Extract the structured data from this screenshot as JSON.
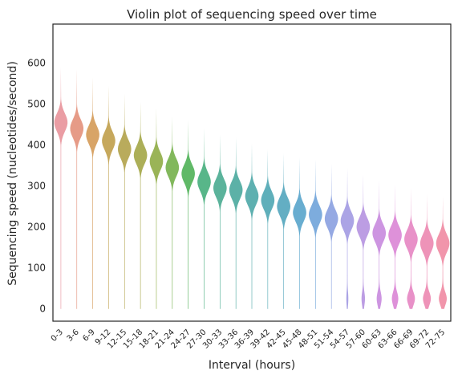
{
  "chart_data": {
    "type": "violin",
    "title": "Violin plot of sequencing speed over time",
    "xlabel": "Interval (hours)",
    "ylabel": "Sequencing speed (nucleotides/second)",
    "ylim": [
      -30,
      695
    ],
    "yticks": [
      0,
      100,
      200,
      300,
      400,
      500,
      600
    ],
    "grid": false,
    "categories": [
      "0-3",
      "3-6",
      "6-9",
      "9-12",
      "12-15",
      "15-18",
      "18-21",
      "21-24",
      "24-27",
      "27-30",
      "30-33",
      "33-36",
      "36-39",
      "39-42",
      "42-45",
      "45-48",
      "48-51",
      "51-54",
      "54-57",
      "57-60",
      "60-63",
      "63-66",
      "66-69",
      "69-72",
      "72-75"
    ],
    "medians": [
      455,
      440,
      425,
      410,
      390,
      375,
      360,
      345,
      330,
      310,
      295,
      290,
      275,
      265,
      250,
      235,
      230,
      220,
      215,
      200,
      185,
      180,
      170,
      160,
      160
    ],
    "max": [
      590,
      585,
      565,
      545,
      525,
      505,
      490,
      470,
      460,
      440,
      425,
      420,
      405,
      390,
      380,
      370,
      365,
      355,
      345,
      330,
      315,
      305,
      295,
      280,
      275
    ],
    "min": [
      0,
      0,
      0,
      0,
      0,
      0,
      0,
      0,
      0,
      0,
      0,
      0,
      0,
      0,
      0,
      0,
      0,
      0,
      0,
      0,
      0,
      0,
      0,
      0,
      0
    ],
    "colors": [
      "#e8929a",
      "#e3907a",
      "#d49a56",
      "#c09e4a",
      "#b1a24a",
      "#a3a646",
      "#8fac45",
      "#74b04a",
      "#4fb157",
      "#46ae7c",
      "#49ab90",
      "#4aa99d",
      "#4ca7a7",
      "#4ea6b2",
      "#52a5bd",
      "#58a4cb",
      "#6fa3d9",
      "#8aa0e0",
      "#a29ae2",
      "#b592e0",
      "#c88ade",
      "#da85d5",
      "#e585c2",
      "#ec87b0",
      "#ef89a2"
    ]
  }
}
